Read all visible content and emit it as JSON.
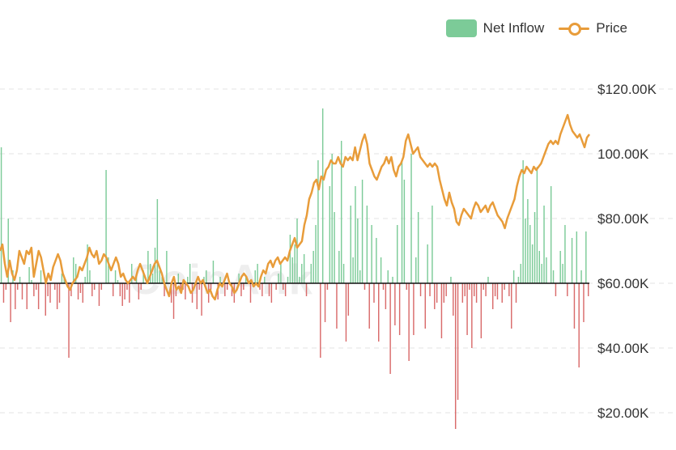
{
  "watermark": "CoinAnk",
  "legend": {
    "inflow_label": "Net Inflow",
    "price_label": "Price"
  },
  "colors": {
    "inflow_positive": "#7ccb98",
    "inflow_negative": "#d96b6b",
    "price_line": "#e89c3a",
    "grid": "#e3e3e3",
    "zero_line": "#111111"
  },
  "chart_data": {
    "type": "bar",
    "y_axis": {
      "position": "right",
      "min": 20000,
      "max": 120000,
      "ticks": [
        120000,
        100000,
        80000,
        60000,
        40000,
        20000
      ],
      "tick_labels": [
        "$120.00K",
        "100.00K",
        "$80.00K",
        "$60.00K",
        "$40.00K",
        "$20.00K"
      ]
    },
    "grid": true,
    "legend_position": "top-right",
    "baseline": 60000,
    "series": [
      {
        "name": "Net Inflow",
        "type": "bar",
        "values": [
          102000,
          54000,
          58000,
          80000,
          48000,
          64000,
          52000,
          58000,
          62000,
          55000,
          60000,
          52000,
          65000,
          61000,
          56000,
          58000,
          52000,
          64000,
          60000,
          50000,
          56000,
          54000,
          60000,
          58000,
          52000,
          54000,
          63000,
          62000,
          60000,
          37000,
          56000,
          68000,
          66000,
          55000,
          57000,
          54000,
          62000,
          72000,
          64000,
          56000,
          58000,
          60000,
          53000,
          58000,
          60000,
          95000,
          68000,
          60000,
          56000,
          64000,
          61000,
          56000,
          53000,
          55000,
          58000,
          54000,
          66000,
          60000,
          62000,
          55000,
          58000,
          64000,
          60000,
          70000,
          66000,
          63000,
          71000,
          86000,
          64000,
          62000,
          56000,
          70000,
          60000,
          54000,
          49000,
          56000,
          63000,
          57000,
          58000,
          55000,
          62000,
          66000,
          54000,
          60000,
          52000,
          58000,
          50000,
          62000,
          64000,
          54000,
          58000,
          67000,
          60000,
          55000,
          62000,
          60000,
          56000,
          58000,
          60000,
          56000,
          54000,
          60000,
          63000,
          56000,
          58000,
          62000,
          60000,
          54000,
          59000,
          64000,
          66000,
          58000,
          56000,
          62000,
          60000,
          56000,
          54000,
          60000,
          58000,
          63000,
          66000,
          58000,
          56000,
          62000,
          75000,
          68000,
          72000,
          80000,
          62000,
          66000,
          69000,
          56000,
          60000,
          66000,
          70000,
          78000,
          98000,
          37000,
          114000,
          48000,
          58000,
          90000,
          100000,
          82000,
          46000,
          70000,
          104000,
          66000,
          42000,
          50000,
          84000,
          68000,
          90000,
          80000,
          64000,
          92000,
          58000,
          84000,
          46000,
          78000,
          54000,
          74000,
          42000,
          68000,
          58000,
          52000,
          64000,
          32000,
          62000,
          47000,
          78000,
          44000,
          98000,
          92000,
          58000,
          36000,
          100000,
          44000,
          68000,
          82000,
          56000,
          60000,
          46000,
          72000,
          56000,
          84000,
          52000,
          54000,
          60000,
          43000,
          54000,
          56000,
          60000,
          62000,
          50000,
          15000,
          24000,
          60000,
          54000,
          56000,
          44000,
          58000,
          40000,
          56000,
          54000,
          60000,
          43000,
          58000,
          56000,
          62000,
          60000,
          52000,
          56000,
          55000,
          60000,
          54000,
          58000,
          60000,
          56000,
          46000,
          64000,
          54000,
          62000,
          66000,
          98000,
          80000,
          86000,
          78000,
          72000,
          82000,
          96000,
          70000,
          66000,
          84000,
          68000,
          60000,
          90000,
          64000,
          56000,
          60000,
          70000,
          66000,
          78000,
          56000,
          60000,
          74000,
          46000,
          76000,
          34000,
          64000,
          48000,
          76000,
          56000
        ],
        "color": "green/red"
      },
      {
        "name": "Price",
        "type": "line",
        "values": [
          70000,
          72000,
          66000,
          62000,
          67000,
          63000,
          61000,
          64000,
          70000,
          68000,
          66000,
          70000,
          69000,
          71000,
          62000,
          66000,
          70000,
          68000,
          64000,
          60000,
          63000,
          61000,
          65000,
          67000,
          69000,
          67000,
          63000,
          61000,
          59000,
          58000,
          60000,
          61000,
          62000,
          65000,
          64000,
          66000,
          68000,
          71000,
          69000,
          68000,
          70000,
          66000,
          67000,
          69000,
          68000,
          66000,
          64000,
          66000,
          68000,
          66000,
          62000,
          63000,
          61000,
          60000,
          61000,
          62000,
          61000,
          64000,
          66000,
          64000,
          62000,
          60000,
          62000,
          64000,
          66000,
          67000,
          65000,
          63000,
          60000,
          58000,
          56000,
          60000,
          62000,
          58000,
          59000,
          57000,
          61000,
          60000,
          59000,
          57000,
          58000,
          60000,
          62000,
          60000,
          61000,
          59000,
          57000,
          58000,
          56000,
          55000,
          58000,
          60000,
          59000,
          61000,
          63000,
          60000,
          59000,
          57000,
          58000,
          60000,
          62000,
          63000,
          62000,
          60000,
          61000,
          59000,
          60000,
          59000,
          62000,
          64000,
          63000,
          66000,
          67000,
          65000,
          67000,
          68000,
          66000,
          67000,
          68000,
          67000,
          70000,
          72000,
          74000,
          71000,
          72000,
          73000,
          78000,
          81000,
          86000,
          88000,
          91000,
          92000,
          89000,
          93000,
          92000,
          95000,
          96000,
          98000,
          97000,
          97000,
          99000,
          97000,
          96000,
          99000,
          98000,
          99000,
          98000,
          102000,
          98000,
          101000,
          104000,
          106000,
          103000,
          97000,
          95000,
          93000,
          92000,
          94000,
          96000,
          97000,
          99000,
          97000,
          99000,
          95000,
          93000,
          96000,
          97000,
          99000,
          104000,
          106000,
          103000,
          100000,
          101000,
          102000,
          99000,
          98000,
          97000,
          96000,
          97000,
          96000,
          97000,
          96000,
          92000,
          89000,
          86000,
          84000,
          88000,
          85000,
          83000,
          79000,
          78000,
          81000,
          83000,
          82000,
          81000,
          80000,
          83000,
          85000,
          84000,
          82000,
          83000,
          84000,
          82000,
          84000,
          85000,
          83000,
          81000,
          80000,
          79000,
          77000,
          80000,
          82000,
          84000,
          86000,
          90000,
          93000,
          95000,
          94000,
          96000,
          95000,
          94000,
          96000,
          95000,
          96000,
          97000,
          99000,
          101000,
          103000,
          104000,
          103000,
          104000,
          103000,
          106000,
          108000,
          110000,
          112000,
          109000,
          107000,
          106000,
          105000,
          106000,
          104000,
          102000,
          105000,
          106000
        ]
      }
    ]
  }
}
